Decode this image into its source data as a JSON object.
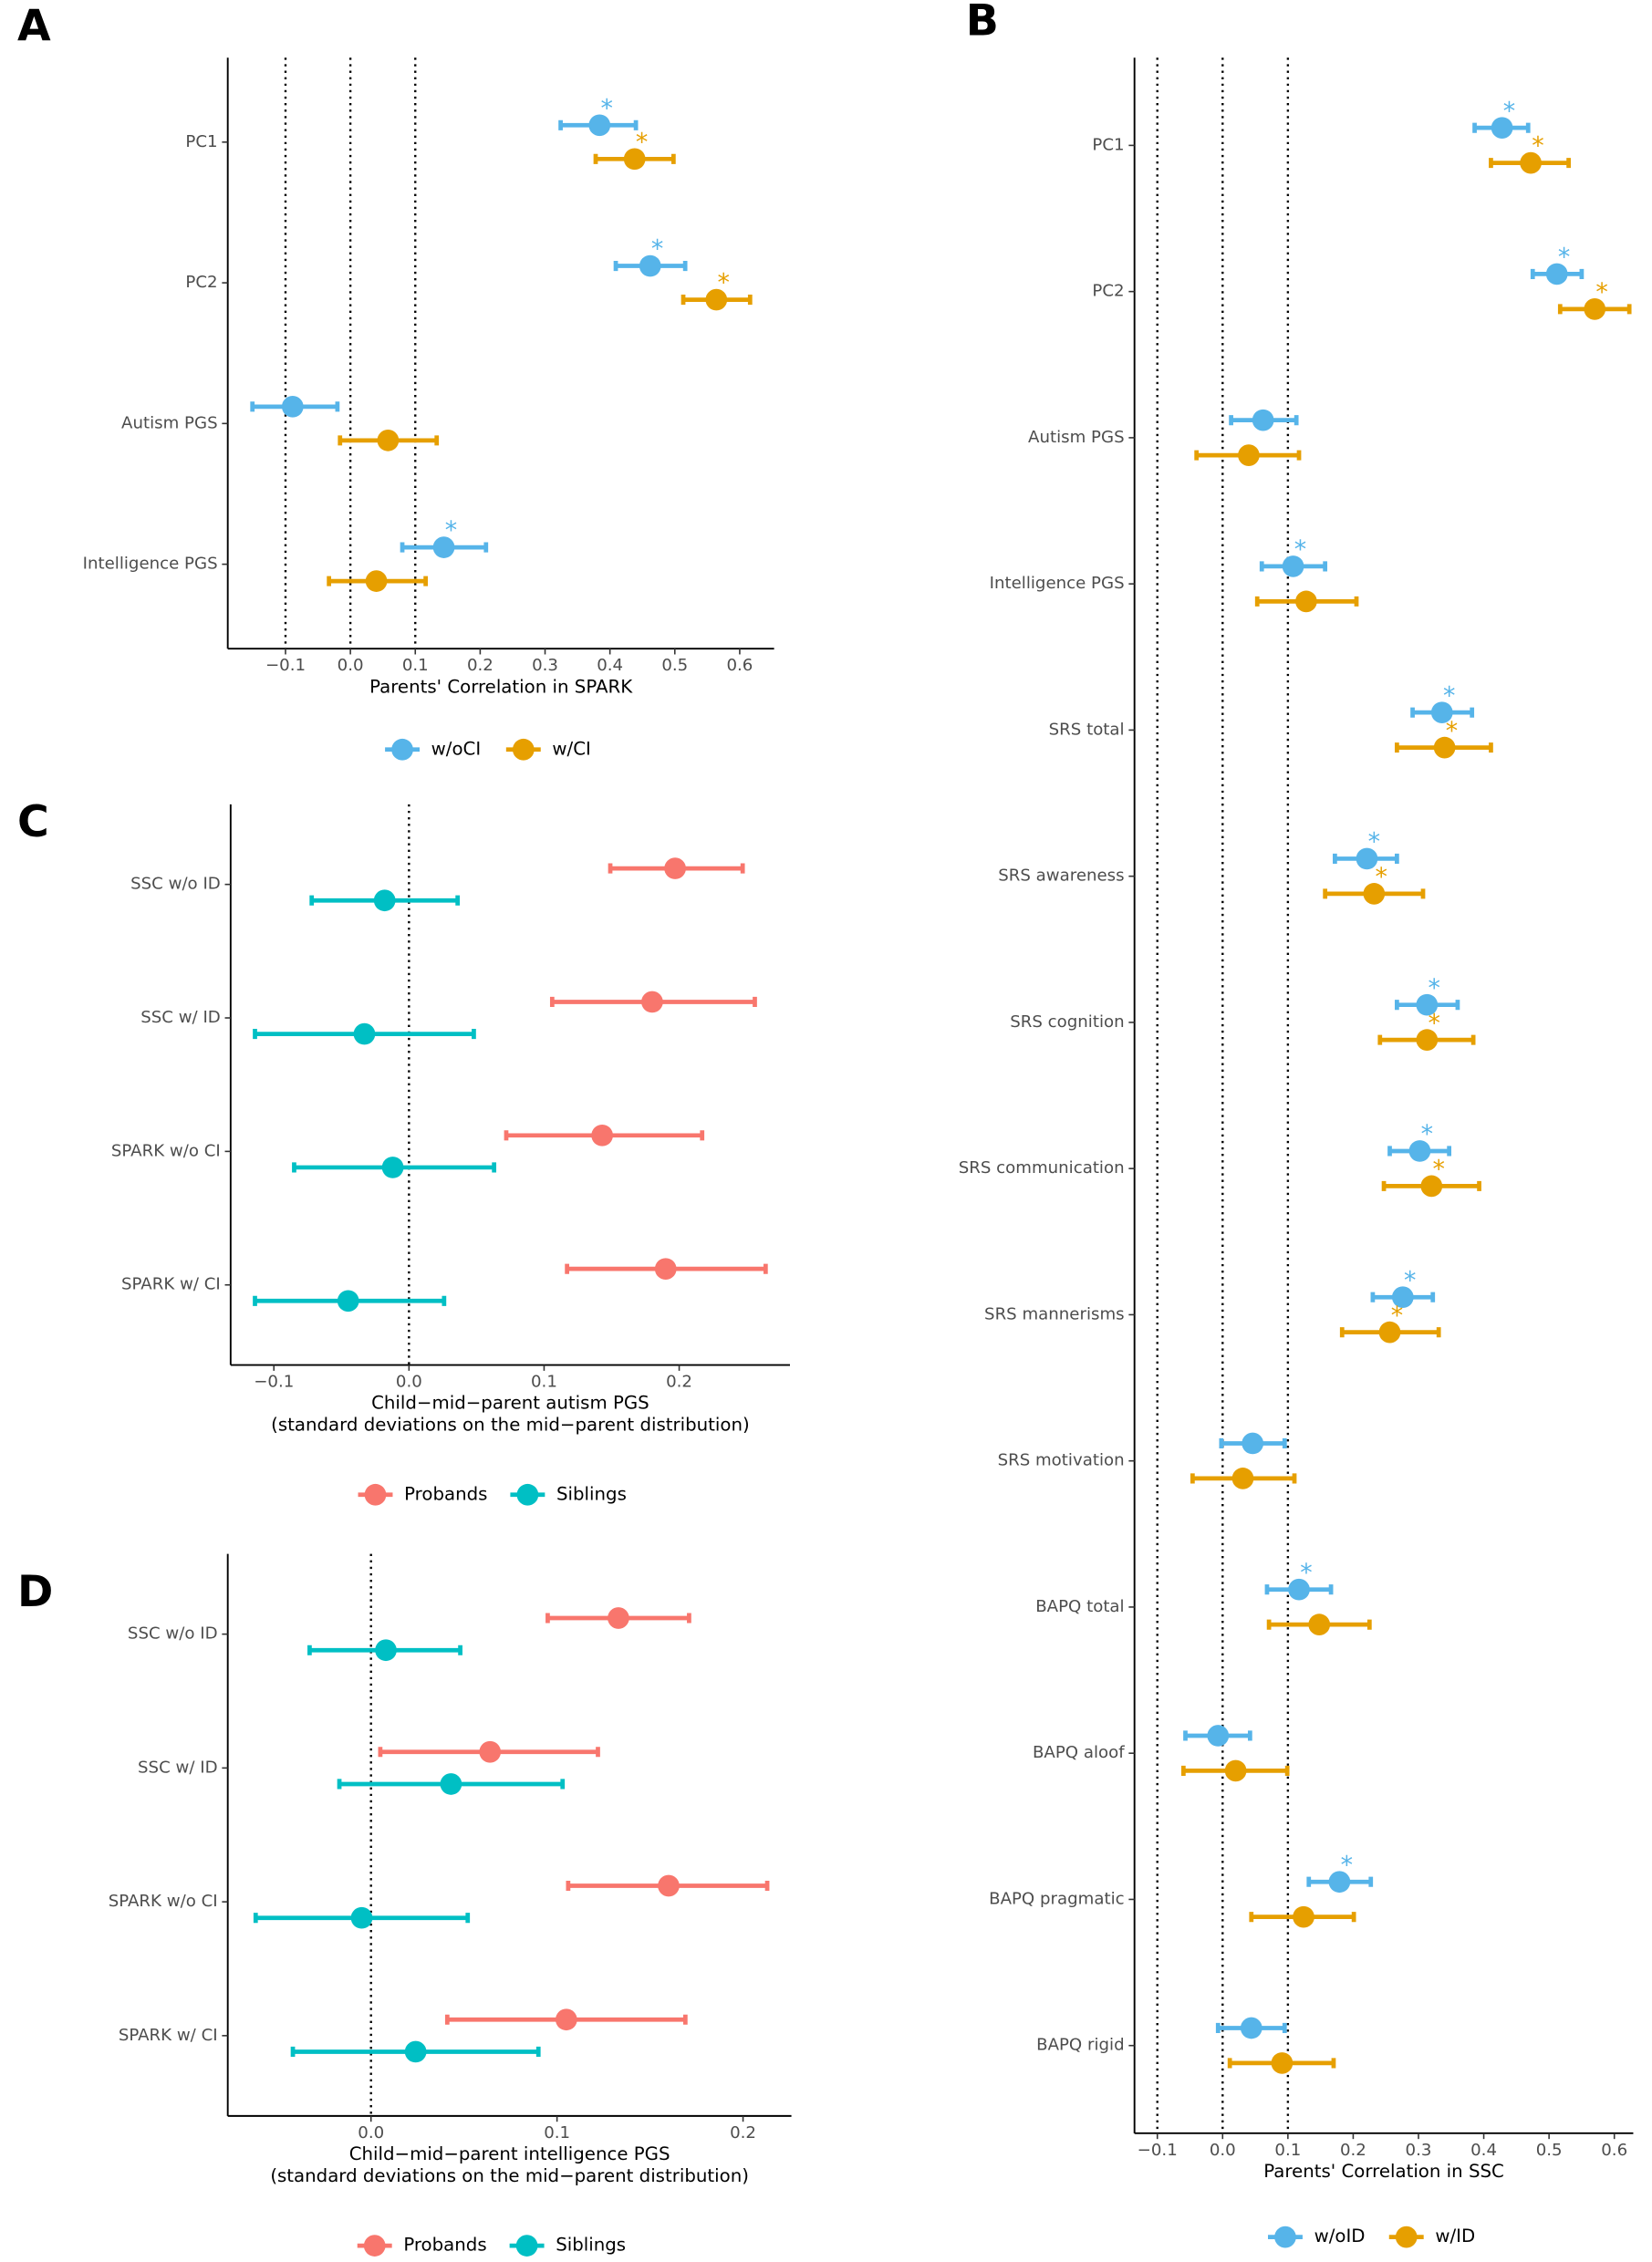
{
  "chart_data": [
    {
      "type": "dot",
      "panel": "A",
      "xlabel": [
        "Parents' Correlation in SPARK"
      ],
      "categories": [
        "PC1",
        "PC2",
        "Autism PGS",
        "Intelligence PGS"
      ],
      "series": [
        {
          "name": "w/oCI",
          "color": "#56B4E9",
          "values": [
            0.384,
            0.462,
            -0.089,
            0.144
          ],
          "lower": [
            0.324,
            0.409,
            -0.151,
            0.08
          ],
          "upper": [
            0.44,
            0.516,
            -0.02,
            0.209
          ],
          "annotations": [
            "*",
            "*",
            null,
            "*"
          ]
        },
        {
          "name": "w/CI",
          "color": "#E69F00",
          "values": [
            0.438,
            0.564,
            0.058,
            0.04
          ],
          "lower": [
            0.378,
            0.513,
            -0.016,
            -0.033
          ],
          "upper": [
            0.498,
            0.616,
            0.133,
            0.116
          ],
          "annotations": [
            "*",
            "*",
            null,
            null
          ]
        }
      ],
      "xlim": [
        -0.189,
        0.653
      ],
      "xticks": [
        {
          "value": -0.1,
          "label": "−0.1"
        },
        {
          "value": 0,
          "label": "0.0"
        },
        0.1,
        0.2,
        0.3,
        0.4,
        0.5,
        0.6
      ],
      "reference_lines": [
        -0.1,
        0,
        0.1
      ],
      "legend": "bottom"
    },
    {
      "type": "dot",
      "panel": "B",
      "xlabel": [
        "Parents' Correlation in SSC"
      ],
      "categories": [
        "PC1",
        "PC2",
        "Autism PGS",
        "Intelligence PGS",
        "SRS total",
        "SRS awareness",
        "SRS cognition",
        "SRS communication",
        "SRS mannerisms",
        "SRS motivation",
        "BAPQ total",
        "BAPQ aloof",
        "BAPQ pragmatic",
        "BAPQ rigid"
      ],
      "series": [
        {
          "name": "w/oID",
          "color": "#56B4E9",
          "values": [
            0.428,
            0.512,
            0.062,
            0.108,
            0.336,
            0.221,
            0.313,
            0.302,
            0.276,
            0.046,
            0.117,
            -0.007,
            0.179,
            0.044
          ],
          "lower": [
            0.386,
            0.475,
            0.013,
            0.06,
            0.291,
            0.172,
            0.267,
            0.256,
            0.23,
            -0.002,
            0.068,
            -0.057,
            0.132,
            -0.007
          ],
          "upper": [
            0.468,
            0.55,
            0.113,
            0.157,
            0.382,
            0.267,
            0.36,
            0.347,
            0.322,
            0.095,
            0.166,
            0.042,
            0.227,
            0.095
          ],
          "annotations": [
            "*",
            "*",
            null,
            "*",
            "*",
            "*",
            "*",
            "*",
            "*",
            null,
            "*",
            null,
            "*",
            null
          ]
        },
        {
          "name": "w/ID",
          "color": "#E69F00",
          "values": [
            0.472,
            0.57,
            0.04,
            0.128,
            0.34,
            0.232,
            0.313,
            0.32,
            0.256,
            0.031,
            0.148,
            0.02,
            0.124,
            0.091
          ],
          "lower": [
            0.411,
            0.517,
            -0.04,
            0.053,
            0.267,
            0.157,
            0.241,
            0.247,
            0.183,
            -0.046,
            0.071,
            -0.06,
            0.044,
            0.011
          ],
          "upper": [
            0.53,
            0.623,
            0.117,
            0.205,
            0.411,
            0.307,
            0.384,
            0.393,
            0.331,
            0.11,
            0.225,
            0.099,
            0.201,
            0.17
          ],
          "annotations": [
            "*",
            "*",
            null,
            null,
            "*",
            "*",
            "*",
            "*",
            "*",
            null,
            null,
            null,
            null,
            null
          ]
        }
      ],
      "xlim": [
        -0.135,
        0.629
      ],
      "xticks": [
        {
          "value": -0.1,
          "label": "−0.1"
        },
        {
          "value": 0,
          "label": "0.0"
        },
        0.1,
        0.2,
        0.3,
        0.4,
        0.5,
        0.6
      ],
      "reference_lines": [
        -0.1,
        0,
        0.1
      ],
      "legend": "bottom"
    },
    {
      "type": "dot",
      "panel": "C",
      "xlabel": [
        "Child−mid−parent autism PGS",
        "(standard deviations on the mid−parent distribution)"
      ],
      "categories": [
        "SSC w/o ID",
        "SSC w/ ID",
        "SPARK w/o CI",
        "SPARK w/ CI"
      ],
      "series": [
        {
          "name": "Probands",
          "color": "#F8766D",
          "values": [
            0.197,
            0.18,
            0.143,
            0.19
          ],
          "lower": [
            0.149,
            0.106,
            0.072,
            0.117
          ],
          "upper": [
            0.247,
            0.256,
            0.217,
            0.264
          ]
        },
        {
          "name": "Siblings",
          "color": "#00BFC4",
          "values": [
            -0.018,
            -0.033,
            -0.012,
            -0.045
          ],
          "lower": [
            -0.072,
            -0.114,
            -0.085,
            -0.114
          ],
          "upper": [
            0.036,
            0.048,
            0.063,
            0.026
          ]
        }
      ],
      "xlim": [
        -0.132,
        0.282
      ],
      "xticks": [
        {
          "value": -0.1,
          "label": "−0.1"
        },
        {
          "value": 0,
          "label": "0.0"
        },
        0.1,
        0.2
      ],
      "reference_lines": [
        0
      ],
      "legend": "bottom"
    },
    {
      "type": "dot",
      "panel": "D",
      "xlabel": [
        "Child−mid−parent intelligence PGS",
        "(standard deviations on the mid−parent distribution)"
      ],
      "categories": [
        "SSC w/o ID",
        "SSC w/ ID",
        "SPARK w/o CI",
        "SPARK w/ CI"
      ],
      "series": [
        {
          "name": "Probands",
          "color": "#F8766D",
          "values": [
            0.133,
            0.064,
            0.16,
            0.105
          ],
          "lower": [
            0.095,
            0.005,
            0.106,
            0.041
          ],
          "upper": [
            0.171,
            0.122,
            0.213,
            0.169
          ]
        },
        {
          "name": "Siblings",
          "color": "#00BFC4",
          "values": [
            0.008,
            0.043,
            -0.005,
            0.024
          ],
          "lower": [
            -0.033,
            -0.017,
            -0.062,
            -0.042
          ],
          "upper": [
            0.048,
            0.103,
            0.052,
            0.09
          ]
        }
      ],
      "xlim": [
        -0.077,
        0.226
      ],
      "xticks": [
        {
          "value": 0,
          "label": "0.0"
        },
        0.1,
        0.2
      ],
      "reference_lines": [
        0
      ],
      "legend": "bottom"
    }
  ]
}
